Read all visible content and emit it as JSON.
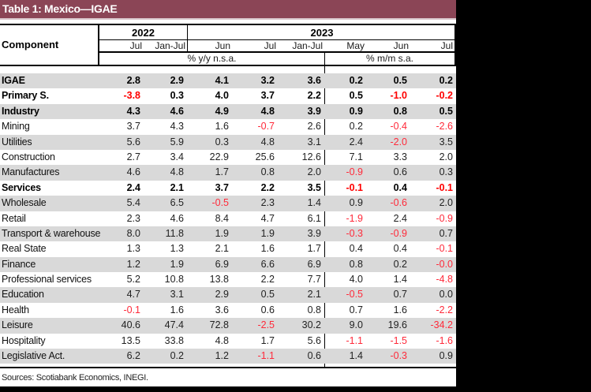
{
  "title": "Table 1: Mexico—IGAE",
  "header": {
    "component_label": "Component",
    "years": [
      "2022",
      "2023"
    ],
    "months": [
      "Jul",
      "Jan-Jul",
      "Jun",
      "Jul",
      "Jan-Jul",
      "May",
      "Jun",
      "Jul"
    ],
    "units": [
      "% y/y n.s.a.",
      "% m/m s.a."
    ]
  },
  "rows": [
    {
      "label": "IGAE",
      "bold": true,
      "values": [
        "2.8",
        "2.9",
        "4.1",
        "3.2",
        "3.6",
        "0.2",
        "0.5",
        "0.2"
      ]
    },
    {
      "label": "Primary S.",
      "bold": true,
      "values": [
        "-3.8",
        "0.3",
        "4.0",
        "3.7",
        "2.2",
        "0.5",
        "-1.0",
        "-0.2"
      ]
    },
    {
      "label": "Industry",
      "bold": true,
      "values": [
        "4.3",
        "4.6",
        "4.9",
        "4.8",
        "3.9",
        "0.9",
        "0.8",
        "0.5"
      ]
    },
    {
      "label": "Mining",
      "bold": false,
      "values": [
        "3.7",
        "4.3",
        "1.6",
        "-0.7",
        "2.6",
        "0.2",
        "-0.4",
        "-2.6"
      ]
    },
    {
      "label": "Utilities",
      "bold": false,
      "values": [
        "5.6",
        "5.9",
        "0.3",
        "4.8",
        "3.1",
        "2.4",
        "-2.0",
        "3.5"
      ]
    },
    {
      "label": "Construction",
      "bold": false,
      "values": [
        "2.7",
        "3.4",
        "22.9",
        "25.6",
        "12.6",
        "7.1",
        "3.3",
        "2.0"
      ]
    },
    {
      "label": "Manufactures",
      "bold": false,
      "values": [
        "4.6",
        "4.8",
        "1.7",
        "0.8",
        "2.0",
        "-0.9",
        "0.6",
        "0.3"
      ]
    },
    {
      "label": "Services",
      "bold": true,
      "values": [
        "2.4",
        "2.1",
        "3.7",
        "2.2",
        "3.5",
        "-0.1",
        "0.4",
        "-0.1"
      ]
    },
    {
      "label": "Wholesale",
      "bold": false,
      "values": [
        "5.4",
        "6.5",
        "-0.5",
        "2.3",
        "1.4",
        "0.9",
        "-0.6",
        "2.0"
      ]
    },
    {
      "label": "Retail",
      "bold": false,
      "values": [
        "2.3",
        "4.6",
        "8.4",
        "4.7",
        "6.1",
        "-1.9",
        "2.4",
        "-0.9"
      ]
    },
    {
      "label": "Transport & warehouse",
      "bold": false,
      "values": [
        "8.0",
        "11.8",
        "1.9",
        "1.9",
        "3.9",
        "-0.3",
        "-0.9",
        "0.7"
      ]
    },
    {
      "label": "Real State",
      "bold": false,
      "values": [
        "1.3",
        "1.3",
        "2.1",
        "1.6",
        "1.7",
        "0.4",
        "0.4",
        "-0.1"
      ]
    },
    {
      "label": "Finance",
      "bold": false,
      "values": [
        "1.2",
        "1.9",
        "6.9",
        "6.6",
        "6.9",
        "0.8",
        "0.2",
        "-0.0"
      ]
    },
    {
      "label": "Professional services",
      "bold": false,
      "values": [
        "5.2",
        "10.8",
        "13.8",
        "2.2",
        "7.7",
        "4.0",
        "1.4",
        "-4.8"
      ]
    },
    {
      "label": "Education",
      "bold": false,
      "values": [
        "4.7",
        "3.1",
        "2.9",
        "0.5",
        "2.1",
        "-0.5",
        "0.7",
        "0.0"
      ]
    },
    {
      "label": "Health",
      "bold": false,
      "values": [
        "-0.1",
        "1.6",
        "3.6",
        "0.6",
        "0.8",
        "0.7",
        "1.6",
        "-2.2"
      ]
    },
    {
      "label": "Leisure",
      "bold": false,
      "values": [
        "40.6",
        "47.4",
        "72.8",
        "-2.5",
        "30.2",
        "9.0",
        "19.6",
        "-34.2"
      ]
    },
    {
      "label": "Hospitality",
      "bold": false,
      "values": [
        "13.5",
        "33.8",
        "4.8",
        "1.7",
        "5.6",
        "-1.1",
        "-1.5",
        "-1.6"
      ]
    },
    {
      "label": "Legislative Act.",
      "bold": false,
      "values": [
        "6.2",
        "0.2",
        "1.2",
        "-1.1",
        "0.6",
        "1.4",
        "-0.3",
        "0.9"
      ]
    }
  ],
  "sources": "Sources: Scotiabank Economics, INEGI.",
  "colors": {
    "title_bg": "#8b4556",
    "row_shade": "#d9d9d9",
    "negative": "#ff2a3a"
  }
}
